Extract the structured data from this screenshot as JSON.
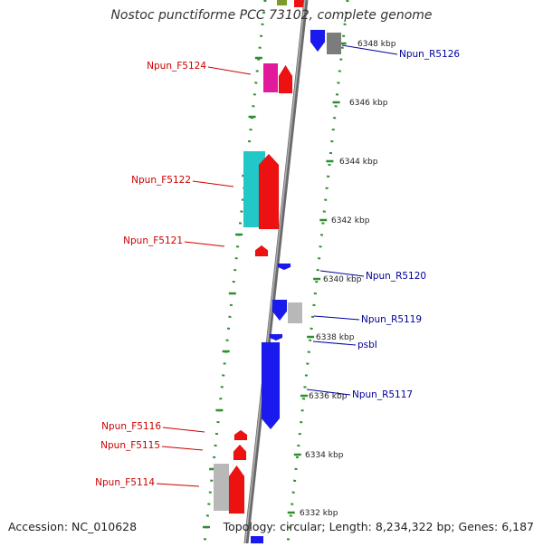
{
  "title": "Nostoc punctiforme PCC 73102, complete genome",
  "footer": {
    "accession": "Accession: NC_010628",
    "topology": "Topology: circular; Length: 8,234,322 bp; Genes: 6,187"
  },
  "colors": {
    "backbone": "#8a8a8a",
    "tick_dash": "#2f8f2f",
    "forward_label": "#cc0000",
    "reverse_label": "#00009a",
    "red": "#ee1111",
    "blue": "#1a1aee",
    "gray": "#b8b8b8",
    "cyan": "#22c8c8",
    "magenta": "#e01a9a"
  },
  "scale_labels": [
    "6348 kbp",
    "6346 kbp",
    "6344 kbp",
    "6342 kbp",
    "6340 kbp",
    "6338 kbp",
    "6336 kbp",
    "6334 kbp",
    "6332 kbp"
  ],
  "forward_gene_labels": [
    "Npun_F5124",
    "Npun_F5122",
    "Npun_F5121",
    "Npun_F5116",
    "Npun_F5115",
    "Npun_F5114"
  ],
  "reverse_gene_labels": [
    "Npun_R5126",
    "Npun_R5120",
    "Npun_R5119",
    "psbI",
    "Npun_R5117"
  ]
}
